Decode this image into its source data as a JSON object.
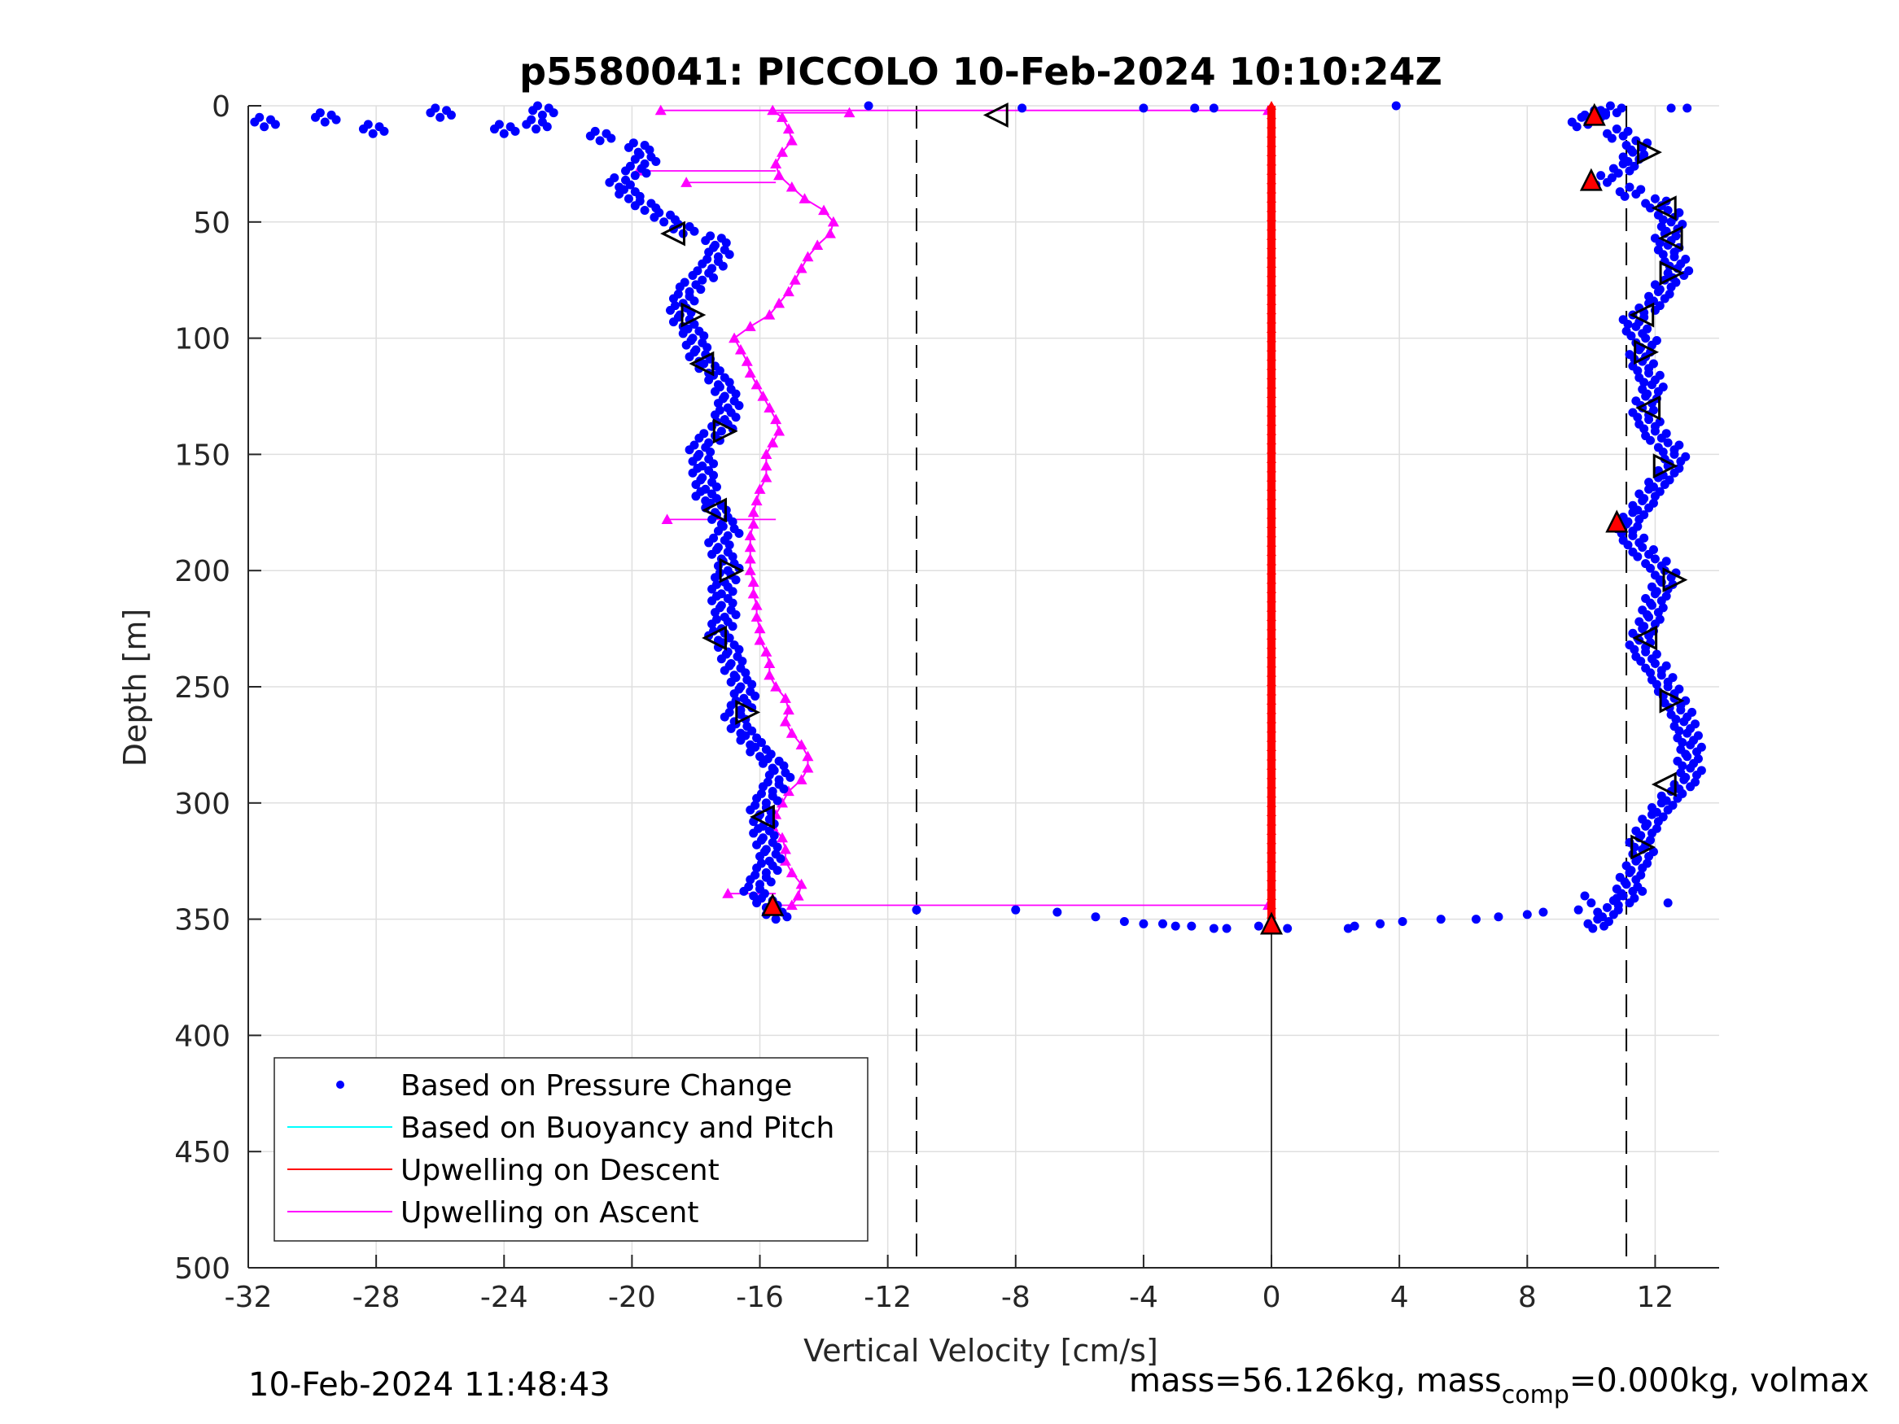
{
  "chart_data": {
    "type": "scatter",
    "title": "p5580041: PICCOLO 10-Feb-2024 10:10:24Z",
    "xlabel": "Vertical Velocity [cm/s]",
    "ylabel": "Depth [m]",
    "xlim": [
      -32,
      14
    ],
    "ylim": [
      500,
      0
    ],
    "y_reversed": true,
    "grid": true,
    "xticks": [
      -32,
      -28,
      -24,
      -20,
      -16,
      -12,
      -8,
      -4,
      0,
      4,
      8,
      12
    ],
    "yticks": [
      0,
      50,
      100,
      150,
      200,
      250,
      300,
      350,
      400,
      450,
      500
    ],
    "legend_position": "bottom-left",
    "legend": [
      {
        "label": "Based on Pressure Change",
        "color": "#0000ff",
        "marker": "dot"
      },
      {
        "label": "Based on Buoyancy and Pitch",
        "color": "#00ffff",
        "marker": "line"
      },
      {
        "label": "Upwelling on Descent",
        "color": "#ff0000",
        "marker": "line"
      },
      {
        "label": "Upwelling on Ascent",
        "color": "#ff00ff",
        "marker": "line"
      }
    ],
    "reference_lines": {
      "dashed_x": [
        -11.1,
        11.1
      ],
      "solid_x": [
        0
      ]
    },
    "series": [
      {
        "name": "Based on Pressure Change",
        "color": "#0000ff",
        "descent_profile": [
          [
            0,
            10.6
          ],
          [
            2,
            10.1
          ],
          [
            5,
            9.7
          ],
          [
            10,
            10.8
          ],
          [
            15,
            11.4
          ],
          [
            20,
            11.3
          ],
          [
            25,
            11.0
          ],
          [
            30,
            10.3
          ],
          [
            35,
            11.2
          ],
          [
            40,
            12.0
          ],
          [
            45,
            12.4
          ],
          [
            50,
            12.5
          ],
          [
            55,
            12.3
          ],
          [
            60,
            12.4
          ],
          [
            65,
            12.6
          ],
          [
            70,
            12.7
          ],
          [
            75,
            12.3
          ],
          [
            80,
            12.1
          ],
          [
            85,
            11.8
          ],
          [
            90,
            11.3
          ],
          [
            95,
            11.4
          ],
          [
            100,
            11.7
          ],
          [
            105,
            11.5
          ],
          [
            110,
            11.6
          ],
          [
            115,
            11.8
          ],
          [
            120,
            11.9
          ],
          [
            125,
            11.7
          ],
          [
            130,
            11.6
          ],
          [
            135,
            11.8
          ],
          [
            140,
            12.0
          ],
          [
            145,
            12.4
          ],
          [
            150,
            12.6
          ],
          [
            155,
            12.4
          ],
          [
            160,
            12.1
          ],
          [
            165,
            11.8
          ],
          [
            170,
            11.6
          ],
          [
            175,
            11.3
          ],
          [
            180,
            11.1
          ],
          [
            185,
            11.3
          ],
          [
            190,
            11.6
          ],
          [
            195,
            12.0
          ],
          [
            200,
            12.3
          ],
          [
            205,
            12.2
          ],
          [
            210,
            12.0
          ],
          [
            215,
            11.9
          ],
          [
            220,
            11.8
          ],
          [
            225,
            11.6
          ],
          [
            230,
            11.5
          ],
          [
            235,
            11.7
          ],
          [
            240,
            12.0
          ],
          [
            245,
            12.2
          ],
          [
            250,
            12.4
          ],
          [
            255,
            12.6
          ],
          [
            260,
            12.8
          ],
          [
            265,
            12.9
          ],
          [
            270,
            13.0
          ],
          [
            275,
            13.1
          ],
          [
            280,
            13.0
          ],
          [
            285,
            13.1
          ],
          [
            290,
            12.9
          ],
          [
            295,
            12.5
          ],
          [
            300,
            12.2
          ],
          [
            305,
            11.9
          ],
          [
            310,
            11.7
          ],
          [
            315,
            11.5
          ],
          [
            320,
            11.6
          ],
          [
            325,
            11.4
          ],
          [
            330,
            11.2
          ],
          [
            335,
            11.1
          ],
          [
            340,
            11.0
          ],
          [
            345,
            10.5
          ],
          [
            350,
            10.2
          ]
        ],
        "ascent_profile": [
          [
            350,
            -15.5
          ],
          [
            345,
            -15.8
          ],
          [
            340,
            -16.2
          ],
          [
            335,
            -16.0
          ],
          [
            330,
            -15.8
          ],
          [
            325,
            -15.7
          ],
          [
            320,
            -15.8
          ],
          [
            315,
            -15.9
          ],
          [
            310,
            -15.9
          ],
          [
            305,
            -16.0
          ],
          [
            300,
            -15.8
          ],
          [
            295,
            -15.6
          ],
          [
            290,
            -15.4
          ],
          [
            285,
            -15.6
          ],
          [
            280,
            -16.0
          ],
          [
            275,
            -16.3
          ],
          [
            270,
            -16.6
          ],
          [
            265,
            -16.8
          ],
          [
            260,
            -16.6
          ],
          [
            255,
            -16.5
          ],
          [
            250,
            -16.6
          ],
          [
            245,
            -16.8
          ],
          [
            240,
            -16.9
          ],
          [
            235,
            -17.0
          ],
          [
            230,
            -17.3
          ],
          [
            225,
            -17.2
          ],
          [
            220,
            -17.1
          ],
          [
            215,
            -17.2
          ],
          [
            210,
            -17.2
          ],
          [
            205,
            -17.1
          ],
          [
            200,
            -17.0
          ],
          [
            195,
            -17.2
          ],
          [
            190,
            -17.3
          ],
          [
            185,
            -17.0
          ],
          [
            180,
            -17.2
          ],
          [
            175,
            -17.4
          ],
          [
            170,
            -17.7
          ],
          [
            165,
            -17.7
          ],
          [
            160,
            -17.8
          ],
          [
            155,
            -17.8
          ],
          [
            150,
            -17.9
          ],
          [
            145,
            -17.6
          ],
          [
            140,
            -17.2
          ],
          [
            135,
            -17.1
          ],
          [
            130,
            -17.0
          ],
          [
            125,
            -17.1
          ],
          [
            120,
            -17.3
          ],
          [
            115,
            -17.6
          ],
          [
            110,
            -17.9
          ],
          [
            105,
            -18.0
          ],
          [
            100,
            -18.1
          ],
          [
            95,
            -18.4
          ],
          [
            90,
            -18.5
          ],
          [
            85,
            -18.4
          ],
          [
            80,
            -18.2
          ],
          [
            75,
            -17.8
          ],
          [
            70,
            -17.5
          ],
          [
            65,
            -17.3
          ],
          [
            60,
            -17.4
          ],
          [
            55,
            -18.4
          ],
          [
            50,
            -19.0
          ],
          [
            45,
            -19.6
          ],
          [
            40,
            -20.1
          ],
          [
            35,
            -20.4
          ],
          [
            30,
            -19.9
          ],
          [
            25,
            -19.6
          ],
          [
            20,
            -19.8
          ],
          [
            15,
            -21.0
          ],
          [
            10,
            -23.0
          ],
          [
            5,
            -26.0
          ],
          [
            9,
            -31.5
          ],
          [
            7,
            -29.6
          ],
          [
            12,
            -28.1
          ],
          [
            4,
            -22.8
          ],
          [
            12,
            -24.0
          ]
        ],
        "surface_points": [
          [
            0,
            -12.6
          ],
          [
            1,
            -7.8
          ],
          [
            1,
            -4.0
          ],
          [
            1,
            -2.4
          ],
          [
            1,
            -1.8
          ],
          [
            0,
            3.9
          ],
          [
            1,
            13.0
          ],
          [
            1,
            12.5
          ]
        ],
        "bottom_points": [
          [
            346,
            -11.1
          ],
          [
            346,
            -8.0
          ],
          [
            347,
            -6.7
          ],
          [
            349,
            -5.5
          ],
          [
            351,
            -4.6
          ],
          [
            352,
            -4.0
          ],
          [
            352,
            -3.4
          ],
          [
            353,
            -3.0
          ],
          [
            353,
            -2.5
          ],
          [
            354,
            -1.8
          ],
          [
            354,
            -1.4
          ],
          [
            353,
            -0.4
          ],
          [
            354,
            0.0
          ],
          [
            354,
            0.5
          ],
          [
            354,
            2.4
          ],
          [
            353,
            2.6
          ],
          [
            352,
            3.4
          ],
          [
            351,
            4.1
          ],
          [
            350,
            5.3
          ],
          [
            350,
            6.4
          ],
          [
            349,
            7.1
          ],
          [
            348,
            8.0
          ],
          [
            347,
            8.5
          ],
          [
            346,
            9.6
          ],
          [
            343,
            10.0
          ],
          [
            341,
            10.8
          ],
          [
            338,
            11.6
          ],
          [
            343,
            12.4
          ],
          [
            340,
            9.8
          ]
        ]
      },
      {
        "name": "Upwelling on Descent",
        "color": "#ff0000",
        "x": 0,
        "depth_range": [
          0,
          352
        ]
      },
      {
        "name": "Upwelling on Ascent",
        "color": "#ff00ff",
        "profile": [
          [
            344,
            -15.0
          ],
          [
            340,
            -14.8
          ],
          [
            335,
            -14.7
          ],
          [
            330,
            -15.0
          ],
          [
            325,
            -15.2
          ],
          [
            320,
            -15.2
          ],
          [
            315,
            -15.3
          ],
          [
            310,
            -15.6
          ],
          [
            305,
            -15.5
          ],
          [
            300,
            -15.3
          ],
          [
            295,
            -15.1
          ],
          [
            290,
            -14.7
          ],
          [
            285,
            -14.5
          ],
          [
            280,
            -14.5
          ],
          [
            275,
            -14.7
          ],
          [
            270,
            -15.0
          ],
          [
            265,
            -15.2
          ],
          [
            260,
            -15.1
          ],
          [
            255,
            -15.2
          ],
          [
            250,
            -15.5
          ],
          [
            245,
            -15.7
          ],
          [
            240,
            -15.7
          ],
          [
            235,
            -15.8
          ],
          [
            230,
            -16.0
          ],
          [
            225,
            -16.0
          ],
          [
            220,
            -16.1
          ],
          [
            215,
            -16.1
          ],
          [
            210,
            -16.2
          ],
          [
            205,
            -16.2
          ],
          [
            200,
            -16.3
          ],
          [
            195,
            -16.3
          ],
          [
            190,
            -16.3
          ],
          [
            185,
            -16.3
          ],
          [
            180,
            -16.2
          ],
          [
            175,
            -16.2
          ],
          [
            170,
            -16.1
          ],
          [
            165,
            -16.0
          ],
          [
            160,
            -15.8
          ],
          [
            155,
            -15.8
          ],
          [
            150,
            -15.8
          ],
          [
            145,
            -15.6
          ],
          [
            140,
            -15.4
          ],
          [
            135,
            -15.5
          ],
          [
            130,
            -15.7
          ],
          [
            125,
            -15.9
          ],
          [
            120,
            -16.1
          ],
          [
            115,
            -16.3
          ],
          [
            110,
            -16.4
          ],
          [
            105,
            -16.6
          ],
          [
            100,
            -16.8
          ],
          [
            95,
            -16.3
          ],
          [
            90,
            -15.7
          ],
          [
            85,
            -15.4
          ],
          [
            80,
            -15.1
          ],
          [
            75,
            -14.9
          ],
          [
            70,
            -14.7
          ],
          [
            65,
            -14.5
          ],
          [
            60,
            -14.2
          ],
          [
            55,
            -13.8
          ],
          [
            50,
            -13.7
          ],
          [
            45,
            -14.0
          ],
          [
            40,
            -14.6
          ],
          [
            35,
            -15.0
          ],
          [
            30,
            -15.4
          ],
          [
            25,
            -15.5
          ],
          [
            20,
            -15.3
          ],
          [
            15,
            -15.0
          ],
          [
            10,
            -15.1
          ],
          [
            5,
            -15.3
          ],
          [
            2,
            -15.6
          ]
        ],
        "spikes": [
          [
            2,
            -19.1
          ],
          [
            3,
            -13.2
          ],
          [
            28,
            -19.8
          ],
          [
            33,
            -18.3
          ],
          [
            178,
            -18.9
          ],
          [
            339,
            -17.0
          ],
          [
            344,
            -0.1
          ],
          [
            2,
            -0.1
          ]
        ]
      }
    ],
    "markers": {
      "open_triangles": [
        {
          "depth": 4,
          "x": -8.6,
          "dir": "left"
        },
        {
          "depth": 55,
          "x": -18.7,
          "dir": "left"
        },
        {
          "depth": 90,
          "x": -18.1,
          "dir": "right"
        },
        {
          "depth": 111,
          "x": -17.8,
          "dir": "left"
        },
        {
          "depth": 140,
          "x": -17.1,
          "dir": "right"
        },
        {
          "depth": 174,
          "x": -17.4,
          "dir": "left"
        },
        {
          "depth": 200,
          "x": -16.9,
          "dir": "right"
        },
        {
          "depth": 229,
          "x": -17.4,
          "dir": "left"
        },
        {
          "depth": 261,
          "x": -16.4,
          "dir": "right"
        },
        {
          "depth": 306,
          "x": -15.9,
          "dir": "left"
        },
        {
          "depth": 20,
          "x": 11.8,
          "dir": "right"
        },
        {
          "depth": 44,
          "x": 12.3,
          "dir": "left"
        },
        {
          "depth": 57,
          "x": 12.5,
          "dir": "left"
        },
        {
          "depth": 72,
          "x": 12.5,
          "dir": "right"
        },
        {
          "depth": 90,
          "x": 11.6,
          "dir": "left"
        },
        {
          "depth": 106,
          "x": 11.7,
          "dir": "right"
        },
        {
          "depth": 130,
          "x": 11.8,
          "dir": "left"
        },
        {
          "depth": 155,
          "x": 12.3,
          "dir": "right"
        },
        {
          "depth": 204,
          "x": 12.6,
          "dir": "right"
        },
        {
          "depth": 229,
          "x": 11.7,
          "dir": "left"
        },
        {
          "depth": 256,
          "x": 12.5,
          "dir": "right"
        },
        {
          "depth": 292,
          "x": 12.3,
          "dir": "left"
        },
        {
          "depth": 319,
          "x": 11.6,
          "dir": "right"
        }
      ],
      "red_triangles": [
        {
          "depth": 4,
          "x": 10.1
        },
        {
          "depth": 32,
          "x": 10.0
        },
        {
          "depth": 179,
          "x": 10.8
        },
        {
          "depth": 344,
          "x": -15.6
        },
        {
          "depth": 352,
          "x": 0.0
        }
      ]
    }
  },
  "footer": {
    "timestamp": "10-Feb-2024 11:48:43",
    "mass_text": "mass=56.126kg, mass",
    "mass_sub": "comp",
    "mass_tail": "=0.000kg, volmax"
  }
}
